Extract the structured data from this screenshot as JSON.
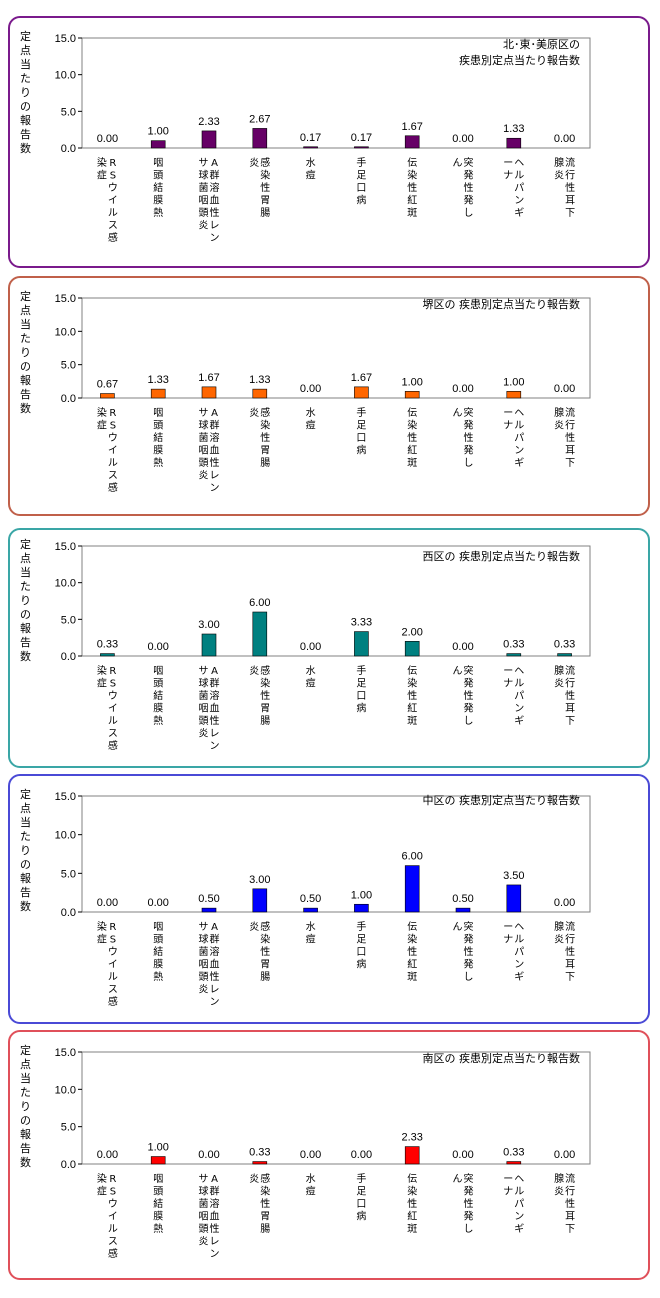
{
  "chart_data": [
    {
      "type": "bar",
      "title_lines": [
        "北･東･美原区の",
        "疾患別定点当たり報告数"
      ],
      "ylabel": "定点当たりの報告数",
      "ylim": [
        0,
        15
      ],
      "yticks": [
        "15.0",
        "10.0",
        "5.0",
        "0.0"
      ],
      "categories": [
        "RSウイルス感染症",
        "咽頭結膜熱",
        "A群溶血性レンサ球菌咽頭炎",
        "感染性胃腸炎",
        "水痘",
        "手足口病",
        "伝染性紅斑",
        "突発性発しん",
        "ヘルパンギーナ",
        "流行性耳下腺炎"
      ],
      "values": [
        0.0,
        1.0,
        2.33,
        2.67,
        0.17,
        0.17,
        1.67,
        0.0,
        1.33,
        0.0
      ],
      "labels": [
        "0.00",
        "1.00",
        "2.33",
        "2.67",
        "0.17",
        "0.17",
        "1.67",
        "0.00",
        "1.33",
        "0.00"
      ],
      "color": "#660066",
      "border_color": "#7a1a8c"
    },
    {
      "type": "bar",
      "title_lines": [
        "堺区の 疾患別定点当たり報告数"
      ],
      "ylabel": "定点当たりの報告数",
      "ylim": [
        0,
        15
      ],
      "yticks": [
        "15.0",
        "10.0",
        "5.0",
        "0.0"
      ],
      "categories": [
        "RSウイルス感染症",
        "咽頭結膜熱",
        "A群溶血性レンサ球菌咽頭炎",
        "感染性胃腸炎",
        "水痘",
        "手足口病",
        "伝染性紅斑",
        "突発性発しん",
        "ヘルパンギーナ",
        "流行性耳下腺炎"
      ],
      "values": [
        0.67,
        1.33,
        1.67,
        1.33,
        0.0,
        1.67,
        1.0,
        0.0,
        1.0,
        0.0
      ],
      "labels": [
        "0.67",
        "1.33",
        "1.67",
        "1.33",
        "0.00",
        "1.67",
        "1.00",
        "0.00",
        "1.00",
        "0.00"
      ],
      "color": "#ff6600",
      "border_color": "#c0604a"
    },
    {
      "type": "bar",
      "title_lines": [
        "西区の 疾患別定点当たり報告数"
      ],
      "ylabel": "定点当たりの報告数",
      "ylim": [
        0,
        15
      ],
      "yticks": [
        "15.0",
        "10.0",
        "5.0",
        "0.0"
      ],
      "categories": [
        "RSウイルス感染症",
        "咽頭結膜熱",
        "A群溶血性レンサ球菌咽頭炎",
        "感染性胃腸炎",
        "水痘",
        "手足口病",
        "伝染性紅斑",
        "突発性発しん",
        "ヘルパンギーナ",
        "流行性耳下腺炎"
      ],
      "values": [
        0.33,
        0.0,
        3.0,
        6.0,
        0.0,
        3.33,
        2.0,
        0.0,
        0.33,
        0.33
      ],
      "labels": [
        "0.33",
        "0.00",
        "3.00",
        "6.00",
        "0.00",
        "3.33",
        "2.00",
        "0.00",
        "0.33",
        "0.33"
      ],
      "color": "#008080",
      "border_color": "#3aa6a6"
    },
    {
      "type": "bar",
      "title_lines": [
        "中区の 疾患別定点当たり報告数"
      ],
      "ylabel": "定点当たりの報告数",
      "ylim": [
        0,
        15
      ],
      "yticks": [
        "15.0",
        "10.0",
        "5.0",
        "0.0"
      ],
      "categories": [
        "RSウイルス感染症",
        "咽頭結膜熱",
        "A群溶血性レンサ球菌咽頭炎",
        "感染性胃腸炎",
        "水痘",
        "手足口病",
        "伝染性紅斑",
        "突発性発しん",
        "ヘルパンギーナ",
        "流行性耳下腺炎"
      ],
      "values": [
        0.0,
        0.0,
        0.5,
        3.0,
        0.5,
        1.0,
        6.0,
        0.5,
        3.5,
        0.0
      ],
      "labels": [
        "0.00",
        "0.00",
        "0.50",
        "3.00",
        "0.50",
        "1.00",
        "6.00",
        "0.50",
        "3.50",
        "0.00"
      ],
      "color": "#0000ff",
      "border_color": "#4a4ad6"
    },
    {
      "type": "bar",
      "title_lines": [
        "南区の 疾患別定点当たり報告数"
      ],
      "ylabel": "定点当たりの報告数",
      "ylim": [
        0,
        15
      ],
      "yticks": [
        "15.0",
        "10.0",
        "5.0",
        "0.0"
      ],
      "categories": [
        "RSウイルス感染症",
        "咽頭結膜熱",
        "A群溶血性レンサ球菌咽頭炎",
        "感染性胃腸炎",
        "水痘",
        "手足口病",
        "伝染性紅斑",
        "突発性発しん",
        "ヘルパンギーナ",
        "流行性耳下腺炎"
      ],
      "values": [
        0.0,
        1.0,
        0.0,
        0.33,
        0.0,
        0.0,
        2.33,
        0.0,
        0.33,
        0.0
      ],
      "labels": [
        "0.00",
        "1.00",
        "0.00",
        "0.33",
        "0.00",
        "0.00",
        "2.33",
        "0.00",
        "0.33",
        "0.00"
      ],
      "color": "#ff0000",
      "border_color": "#e0505a"
    }
  ]
}
